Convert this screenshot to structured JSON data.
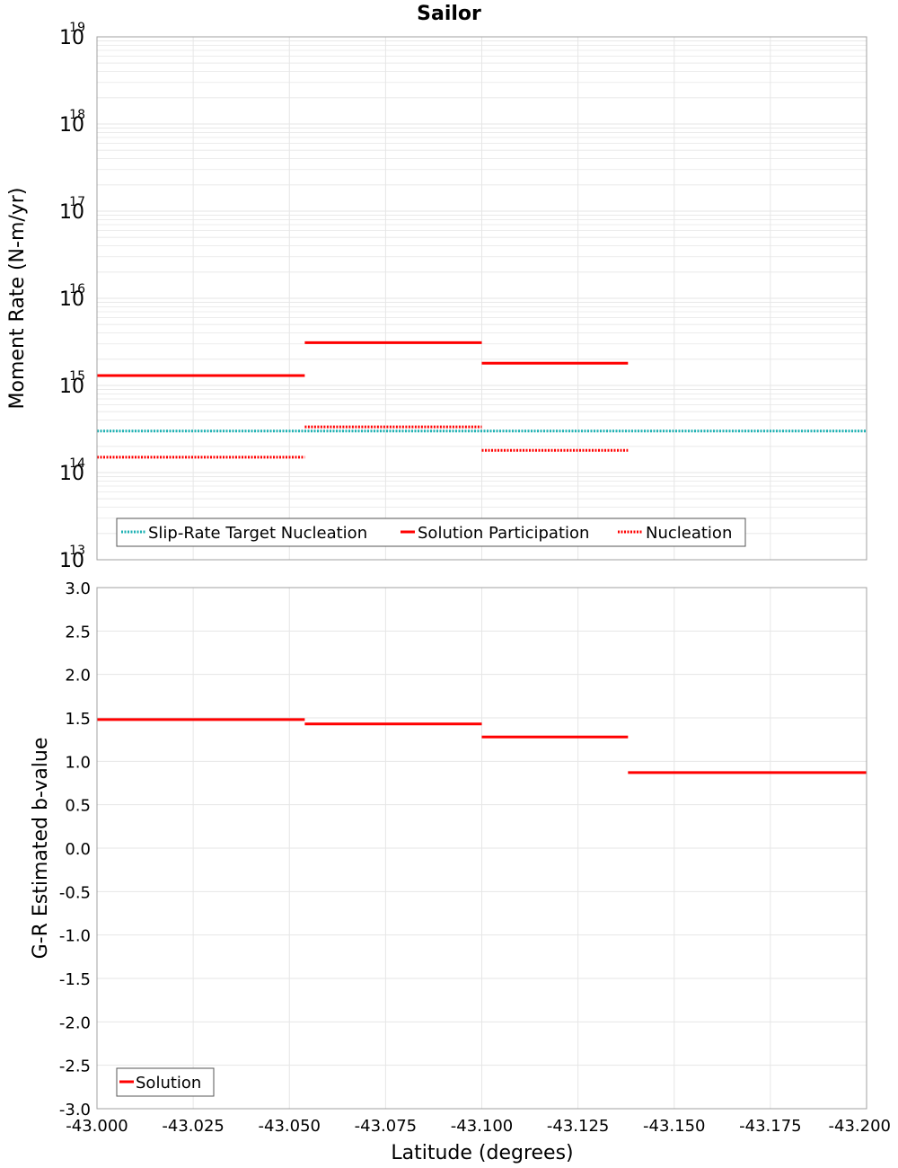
{
  "colors": {
    "target": "#1fb2b4",
    "solution": "#ff0000",
    "grid": "#e6e6e6",
    "frame": "#a0a0a0"
  },
  "chart_data": [
    {
      "type": "line",
      "title": "Sailor",
      "xlabel": "",
      "ylabel": "Moment Rate (N-m/yr)",
      "yscale": "log",
      "xlim": [
        -43.0,
        -43.2
      ],
      "ylim": [
        10000000000000.0,
        1e+19
      ],
      "ytick_exponents": [
        13,
        14,
        15,
        16,
        17,
        18,
        19
      ],
      "ytick_base": "10",
      "grid": true,
      "legend_placement": "bottom-left",
      "series": [
        {
          "name": "Slip-Rate Target Nucleation",
          "style": "dotted",
          "color": "#1fb2b4",
          "segments": [
            {
              "x0": -43.0,
              "x1": -43.2,
              "y": 300000000000000.0
            }
          ]
        },
        {
          "name": "Solution Participation",
          "style": "solid",
          "color": "#ff0000",
          "segments": [
            {
              "x0": -43.0,
              "x1": -43.054,
              "y": 1300000000000000.0
            },
            {
              "x0": -43.054,
              "x1": -43.1,
              "y": 3100000000000000.0
            },
            {
              "x0": -43.1,
              "x1": -43.138,
              "y": 1800000000000000.0
            }
          ]
        },
        {
          "name": "Nucleation",
          "style": "dotted",
          "color": "#ff0000",
          "segments": [
            {
              "x0": -43.0,
              "x1": -43.054,
              "y": 150000000000000.0
            },
            {
              "x0": -43.054,
              "x1": -43.1,
              "y": 335000000000000.0
            },
            {
              "x0": -43.1,
              "x1": -43.138,
              "y": 180000000000000.0
            }
          ]
        }
      ]
    },
    {
      "type": "line",
      "title": "",
      "xlabel": "Latitude (degrees)",
      "ylabel": "G-R Estimated b-value",
      "xlim": [
        -43.0,
        -43.2
      ],
      "ylim": [
        -3.0,
        3.0
      ],
      "xticks": [
        "-43.000",
        "-43.025",
        "-43.050",
        "-43.075",
        "-43.100",
        "-43.125",
        "-43.150",
        "-43.175",
        "-43.200"
      ],
      "yticks": [
        "3.0",
        "2.5",
        "2.0",
        "1.5",
        "1.0",
        "0.5",
        "0.0",
        "-0.5",
        "-1.0",
        "-1.5",
        "-2.0",
        "-2.5",
        "-3.0"
      ],
      "grid": true,
      "legend_placement": "bottom-left",
      "series": [
        {
          "name": "Solution",
          "style": "solid",
          "color": "#ff0000",
          "segments": [
            {
              "x0": -43.0,
              "x1": -43.054,
              "y": 1.48
            },
            {
              "x0": -43.054,
              "x1": -43.1,
              "y": 1.43
            },
            {
              "x0": -43.1,
              "x1": -43.138,
              "y": 1.28
            },
            {
              "x0": -43.138,
              "x1": -43.2,
              "y": 0.87
            }
          ]
        }
      ]
    }
  ]
}
